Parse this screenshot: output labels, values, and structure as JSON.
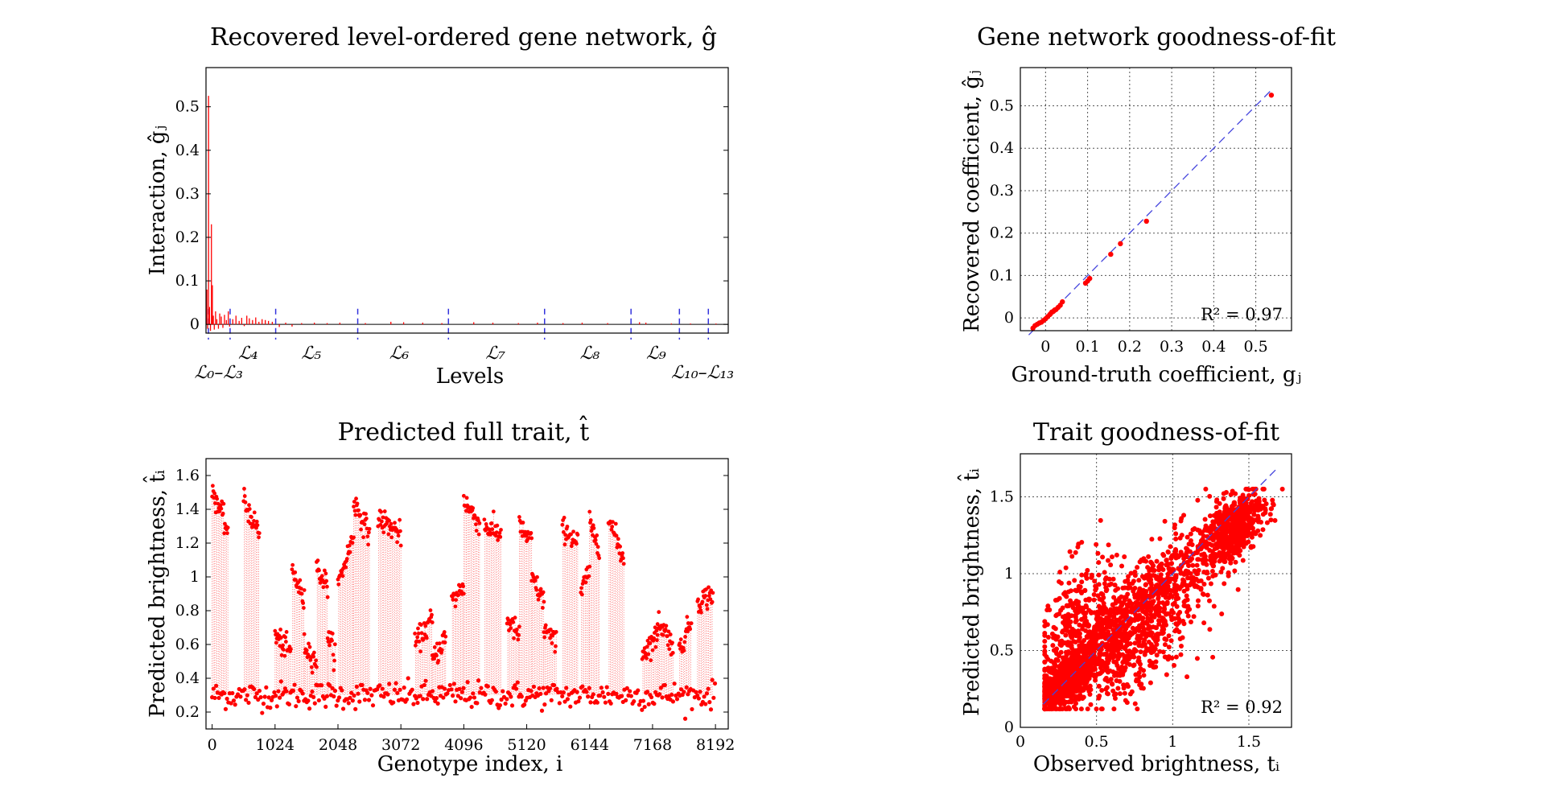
{
  "colors": {
    "data": "#ff0000",
    "reference_line": "#4444dd",
    "level_divider": "#3333dd"
  },
  "chart_data": [
    {
      "type": "bar",
      "title": "Recovered level-ordered gene network, ĝ",
      "xlabel": "Levels",
      "ylabel": "Interaction, ĝⱼ",
      "ylim": [
        -0.02,
        0.59
      ],
      "yticks": [
        "0",
        "0.1",
        "0.2",
        "0.3",
        "0.4",
        "0.5"
      ],
      "ytick_values": [
        0,
        0.1,
        0.2,
        0.3,
        0.4,
        0.5
      ],
      "xlim": [
        0,
        8192
      ],
      "grid": false,
      "level_boundaries": [
        378,
        1093,
        2380,
        3803,
        5311,
        6667,
        7426,
        7880
      ],
      "level_labels": [
        {
          "text": "ℒ₀–ℒ₃",
          "x": 200
        },
        {
          "text": "ℒ₄",
          "x": 660
        },
        {
          "text": "ℒ₅",
          "x": 1650
        },
        {
          "text": "ℒ₆",
          "x": 3030
        },
        {
          "text": "ℒ₇",
          "x": 4540
        },
        {
          "text": "ℒ₈",
          "x": 6020
        },
        {
          "text": "ℒ₉",
          "x": 7060
        },
        {
          "text": "ℒ₁₀–ℒ₁₃",
          "x": 7790
        }
      ],
      "coefficients": [
        {
          "x": 5,
          "y": 0.015
        },
        {
          "x": 15,
          "y": 0.08
        },
        {
          "x": 25,
          "y": -0.01
        },
        {
          "x": 40,
          "y": 0.525
        },
        {
          "x": 55,
          "y": 0.04
        },
        {
          "x": 70,
          "y": -0.015
        },
        {
          "x": 85,
          "y": 0.23
        },
        {
          "x": 100,
          "y": 0.09
        },
        {
          "x": 115,
          "y": 0.02
        },
        {
          "x": 130,
          "y": -0.012
        },
        {
          "x": 150,
          "y": 0.03
        },
        {
          "x": 170,
          "y": 0.012
        },
        {
          "x": 195,
          "y": -0.01
        },
        {
          "x": 215,
          "y": 0.025
        },
        {
          "x": 240,
          "y": 0.018
        },
        {
          "x": 265,
          "y": -0.008
        },
        {
          "x": 290,
          "y": 0.022
        },
        {
          "x": 320,
          "y": 0.01
        },
        {
          "x": 350,
          "y": 0.03
        },
        {
          "x": 370,
          "y": -0.005
        },
        {
          "x": 420,
          "y": 0.012
        },
        {
          "x": 470,
          "y": 0.02
        },
        {
          "x": 520,
          "y": 0.008
        },
        {
          "x": 560,
          "y": 0.015
        },
        {
          "x": 600,
          "y": -0.004
        },
        {
          "x": 640,
          "y": 0.02
        },
        {
          "x": 680,
          "y": 0.014
        },
        {
          "x": 730,
          "y": 0.01
        },
        {
          "x": 780,
          "y": 0.016
        },
        {
          "x": 830,
          "y": 0.006
        },
        {
          "x": 880,
          "y": 0.012
        },
        {
          "x": 930,
          "y": 0.01
        },
        {
          "x": 980,
          "y": 0.008
        },
        {
          "x": 1040,
          "y": 0.006
        },
        {
          "x": 1150,
          "y": -0.006
        },
        {
          "x": 1250,
          "y": 0.004
        },
        {
          "x": 1350,
          "y": -0.005
        },
        {
          "x": 1500,
          "y": 0.003
        },
        {
          "x": 1700,
          "y": 0.004
        },
        {
          "x": 1900,
          "y": 0.003
        },
        {
          "x": 2100,
          "y": 0.004
        },
        {
          "x": 2500,
          "y": 0.003
        },
        {
          "x": 2900,
          "y": 0.006
        },
        {
          "x": 3100,
          "y": 0.005
        },
        {
          "x": 3400,
          "y": 0.004
        },
        {
          "x": 3700,
          "y": 0.003
        },
        {
          "x": 4200,
          "y": 0.005
        },
        {
          "x": 4500,
          "y": 0.004
        },
        {
          "x": 4900,
          "y": 0.003
        },
        {
          "x": 5200,
          "y": 0.004
        },
        {
          "x": 5600,
          "y": 0.003
        },
        {
          "x": 5900,
          "y": 0.004
        },
        {
          "x": 6300,
          "y": 0.003
        },
        {
          "x": 6800,
          "y": 0.005
        },
        {
          "x": 6900,
          "y": 0.004
        },
        {
          "x": 7300,
          "y": 0.002
        },
        {
          "x": 7600,
          "y": 0.002
        },
        {
          "x": 8000,
          "y": 0.002
        }
      ]
    },
    {
      "type": "scatter",
      "title": "Gene network goodness-of-fit",
      "xlabel": "Ground-truth coefficient, gⱼ",
      "ylabel": "Recovered coefficient, ĝⱼ",
      "xlim": [
        -0.06,
        0.585
      ],
      "ylim": [
        -0.03,
        0.59
      ],
      "xticks": [
        "0",
        "0.1",
        "0.2",
        "0.3",
        "0.4",
        "0.5"
      ],
      "xtick_values": [
        0,
        0.1,
        0.2,
        0.3,
        0.4,
        0.5
      ],
      "yticks": [
        "0",
        "0.1",
        "0.2",
        "0.3",
        "0.4",
        "0.5"
      ],
      "ytick_values": [
        0,
        0.1,
        0.2,
        0.3,
        0.4,
        0.5
      ],
      "grid": true,
      "annotation": "R² = 0.97",
      "reference_line": [
        [
          -0.04,
          -0.04
        ],
        [
          0.54,
          0.54
        ]
      ],
      "points": [
        [
          0.537,
          0.525
        ],
        [
          0.24,
          0.228
        ],
        [
          0.178,
          0.175
        ],
        [
          0.155,
          0.15
        ],
        [
          0.105,
          0.093
        ],
        [
          0.1,
          0.087
        ],
        [
          0.095,
          0.082
        ],
        [
          0.04,
          0.038
        ],
        [
          0.035,
          0.03
        ],
        [
          0.03,
          0.025
        ],
        [
          0.025,
          0.02
        ],
        [
          0.02,
          0.017
        ],
        [
          0.015,
          0.014
        ],
        [
          0.01,
          0.008
        ],
        [
          0.005,
          0.003
        ],
        [
          0.0,
          -0.002
        ],
        [
          -0.005,
          -0.006
        ],
        [
          -0.01,
          -0.01
        ],
        [
          -0.015,
          -0.012
        ],
        [
          -0.02,
          -0.015
        ],
        [
          -0.025,
          -0.018
        ],
        [
          -0.03,
          -0.024
        ],
        [
          0.012,
          0.01
        ],
        [
          0.018,
          0.015
        ],
        [
          0.022,
          0.019
        ]
      ]
    },
    {
      "type": "line",
      "title": "Predicted full trait, t̂",
      "xlabel": "Genotype index, i",
      "ylabel": "Predicted brightness, t̂ᵢ",
      "xlim": [
        -100,
        8400
      ],
      "ylim": [
        0.1,
        1.7
      ],
      "xticks": [
        "0",
        "1024",
        "2048",
        "3072",
        "4096",
        "5120",
        "6144",
        "7168",
        "8192"
      ],
      "xtick_values": [
        0,
        1024,
        2048,
        3072,
        4096,
        5120,
        6144,
        7168,
        8192
      ],
      "yticks": [
        "0.2",
        "0.4",
        "0.6",
        "0.8",
        "1",
        "1.2",
        "1.4",
        "1.6"
      ],
      "ytick_values": [
        0.2,
        0.4,
        0.6,
        0.8,
        1.0,
        1.2,
        1.4,
        1.6
      ],
      "grid": false,
      "baseline_level": 0.3,
      "high_segments": [
        {
          "start": 0,
          "end": 256,
          "profile": [
            1.52,
            1.27
          ]
        },
        {
          "start": 512,
          "end": 768,
          "profile": [
            1.45,
            1.26
          ]
        },
        {
          "start": 1024,
          "end": 1280,
          "profile": [
            0.65,
            0.55
          ]
        },
        {
          "start": 1300,
          "end": 1500,
          "profile": [
            1.05,
            0.85
          ]
        },
        {
          "start": 1500,
          "end": 1700,
          "profile": [
            0.6,
            0.5
          ]
        },
        {
          "start": 1700,
          "end": 1880,
          "profile": [
            1.05,
            0.95
          ]
        },
        {
          "start": 1880,
          "end": 2000,
          "profile": [
            0.65,
            0.55
          ]
        },
        {
          "start": 2048,
          "end": 2304,
          "profile": [
            0.95,
            1.25
          ]
        },
        {
          "start": 2304,
          "end": 2560,
          "profile": [
            1.45,
            1.25
          ]
        },
        {
          "start": 2700,
          "end": 3072,
          "profile": [
            1.35,
            1.25
          ]
        },
        {
          "start": 3300,
          "end": 3584,
          "profile": [
            0.6,
            0.75
          ]
        },
        {
          "start": 3584,
          "end": 3800,
          "profile": [
            0.5,
            0.65
          ]
        },
        {
          "start": 3900,
          "end": 4096,
          "profile": [
            0.85,
            0.95
          ]
        },
        {
          "start": 4096,
          "end": 4352,
          "profile": [
            1.45,
            1.32
          ]
        },
        {
          "start": 4430,
          "end": 4700,
          "profile": [
            1.3,
            1.25
          ]
        },
        {
          "start": 4800,
          "end": 5000,
          "profile": [
            0.75,
            0.65
          ]
        },
        {
          "start": 5000,
          "end": 5200,
          "profile": [
            1.3,
            1.2
          ]
        },
        {
          "start": 5200,
          "end": 5400,
          "profile": [
            1.0,
            0.85
          ]
        },
        {
          "start": 5400,
          "end": 5600,
          "profile": [
            0.7,
            0.6
          ]
        },
        {
          "start": 5700,
          "end": 5950,
          "profile": [
            1.3,
            1.2
          ]
        },
        {
          "start": 6000,
          "end": 6144,
          "profile": [
            0.9,
            1.05
          ]
        },
        {
          "start": 6144,
          "end": 6300,
          "profile": [
            1.3,
            1.2
          ]
        },
        {
          "start": 6450,
          "end": 6700,
          "profile": [
            1.35,
            1.1
          ]
        },
        {
          "start": 7000,
          "end": 7250,
          "profile": [
            0.55,
            0.65
          ]
        },
        {
          "start": 7250,
          "end": 7500,
          "profile": [
            0.75,
            0.6
          ]
        },
        {
          "start": 7600,
          "end": 7800,
          "profile": [
            0.55,
            0.75
          ]
        },
        {
          "start": 7900,
          "end": 8150,
          "profile": [
            0.85,
            0.9
          ]
        }
      ]
    },
    {
      "type": "scatter",
      "title": "Trait goodness-of-fit",
      "xlabel": "Observed brightness, tᵢ",
      "ylabel": "Predicted brightness, t̂ᵢ",
      "xlim": [
        0,
        1.78
      ],
      "ylim": [
        0,
        1.78
      ],
      "xticks": [
        "0",
        "0.5",
        "1",
        "1.5"
      ],
      "xtick_values": [
        0,
        0.5,
        1,
        1.5
      ],
      "yticks": [
        "0",
        "0.5",
        "1",
        "1.5"
      ],
      "ytick_values": [
        0,
        0.5,
        1,
        1.5
      ],
      "grid": true,
      "annotation": "R² = 0.92",
      "reference_line": [
        [
          0.15,
          0.15
        ],
        [
          1.68,
          1.68
        ]
      ],
      "clusters": [
        {
          "cx": 0.3,
          "cy": 0.3,
          "sx": 0.08,
          "sy": 0.07,
          "n": 900
        },
        {
          "cx": 0.6,
          "cy": 0.6,
          "sx": 0.2,
          "sy": 0.15,
          "n": 700
        },
        {
          "cx": 1.0,
          "cy": 0.95,
          "sx": 0.18,
          "sy": 0.15,
          "n": 400
        },
        {
          "cx": 1.4,
          "cy": 1.3,
          "sx": 0.1,
          "sy": 0.1,
          "n": 550
        },
        {
          "cx": 0.35,
          "cy": 0.75,
          "sx": 0.12,
          "sy": 0.18,
          "n": 180
        },
        {
          "cx": 0.8,
          "cy": 0.45,
          "sx": 0.2,
          "sy": 0.12,
          "n": 160
        }
      ]
    }
  ]
}
